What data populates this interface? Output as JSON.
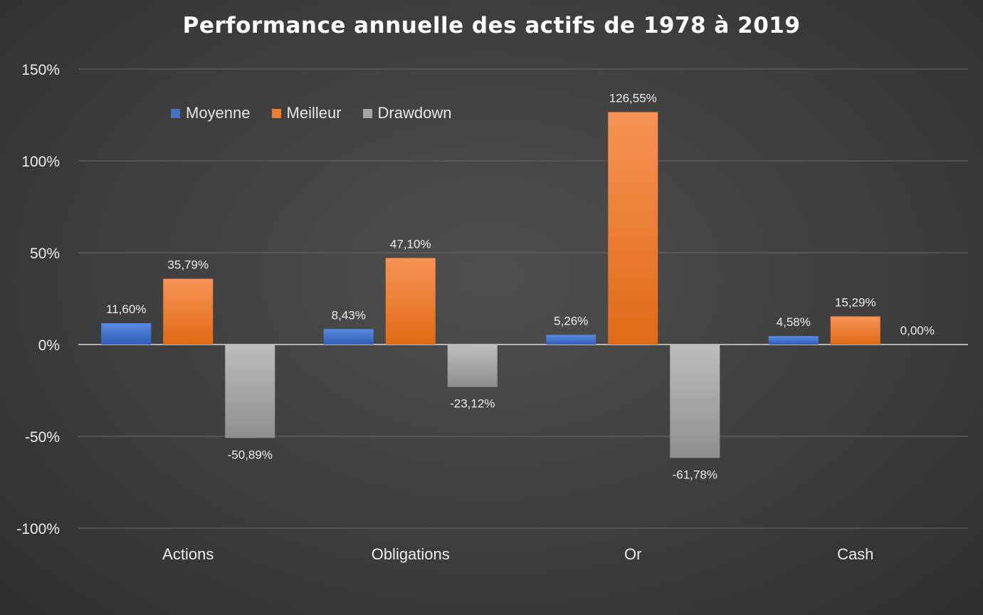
{
  "chart_data": {
    "type": "bar",
    "title": "Performance annuelle des actifs de 1978 à 2019",
    "categories": [
      "Actions",
      "Obligations",
      "Or",
      "Cash"
    ],
    "series": [
      {
        "name": "Moyenne",
        "values": [
          11.6,
          8.43,
          5.26,
          4.58
        ],
        "labels": [
          "11,60%",
          "8,43%",
          "5,26%",
          "4,58%"
        ],
        "color": "#4472c4"
      },
      {
        "name": "Meilleur",
        "values": [
          35.79,
          47.1,
          126.55,
          15.29
        ],
        "labels": [
          "35,79%",
          "47,10%",
          "126,55%",
          "15,29%"
        ],
        "color": "#ed7d31"
      },
      {
        "name": "Drawdown",
        "values": [
          -50.89,
          -23.12,
          -61.78,
          0.0
        ],
        "labels": [
          "-50,89%",
          "-23,12%",
          "-61,78%",
          "0,00%"
        ],
        "color": "#a5a5a5"
      }
    ],
    "y_ticks": [
      150,
      100,
      50,
      0,
      -50,
      -100
    ],
    "y_tick_labels": [
      "150%",
      "100%",
      "50%",
      "0%",
      "-50%",
      "-100%"
    ],
    "ylim": [
      -100,
      150
    ],
    "xlabel": "",
    "ylabel": "",
    "grid": true,
    "legend_position": "top-left"
  }
}
